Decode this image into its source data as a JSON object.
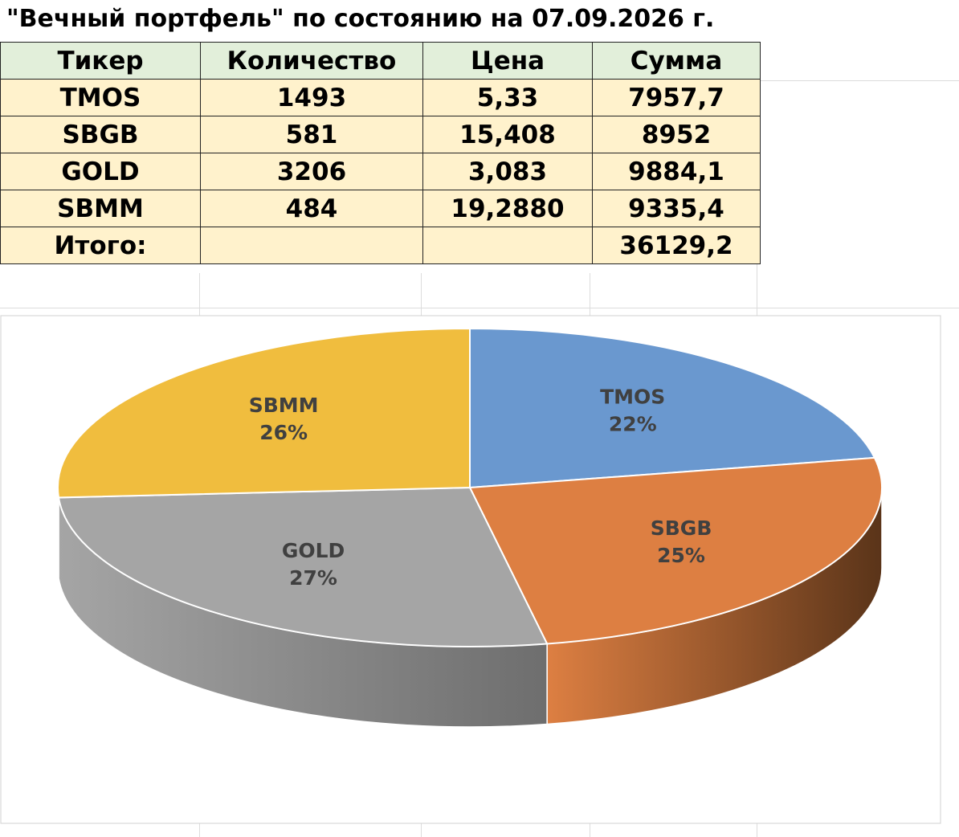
{
  "title": "\"Вечный портфель\" по состоянию на 07.09.2026 г.",
  "table": {
    "header": [
      "Тикер",
      "Количество",
      "Цена",
      "Сумма"
    ],
    "rows": [
      [
        "TMOS",
        "1493",
        "5,33",
        "7957,7"
      ],
      [
        "SBGB",
        "581",
        "15,408",
        "8952"
      ],
      [
        "GOLD",
        "3206",
        "3,083",
        "9884,1"
      ],
      [
        "SBMM",
        "484",
        "19,2880",
        "9335,4"
      ],
      [
        "Итого:",
        "",
        "",
        "36129,2"
      ]
    ]
  },
  "chart_data": {
    "type": "pie",
    "categories": [
      "TMOS",
      "SBGB",
      "GOLD",
      "SBMM"
    ],
    "values": [
      22,
      25,
      27,
      26
    ],
    "value_labels": [
      "22%",
      "25%",
      "27%",
      "26%"
    ],
    "colors": [
      "#6a98cf",
      "#dd7f42",
      "#a5a5a5",
      "#f0bd3e"
    ],
    "side_colors": [
      "#3f5f85",
      "#5a3419",
      "#6e6e6e",
      "#9c7a25"
    ]
  }
}
